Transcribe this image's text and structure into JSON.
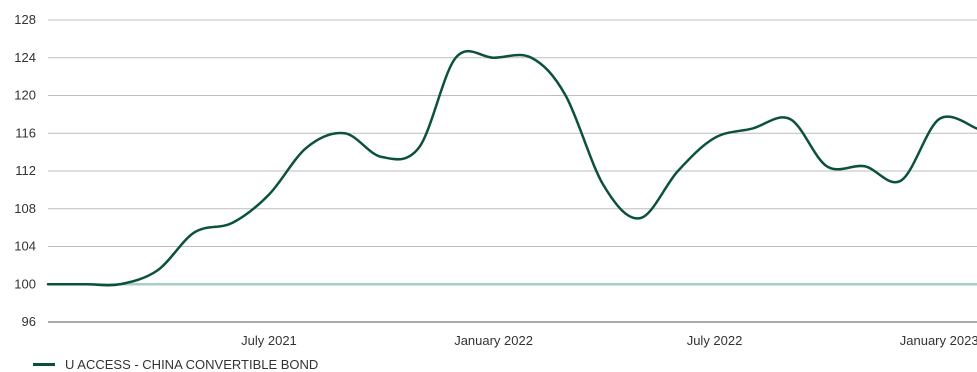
{
  "chart_data": {
    "type": "line",
    "title": "",
    "xlabel": "",
    "ylabel": "",
    "ylim": [
      96,
      128
    ],
    "yticks": [
      96,
      100,
      104,
      108,
      112,
      116,
      120,
      124,
      128
    ],
    "xlim": [
      "2021-01-01",
      "2023-02-01"
    ],
    "xticks": [
      {
        "x": "2021-07-01",
        "label": "July 2021"
      },
      {
        "x": "2022-01-01",
        "label": "January 2022"
      },
      {
        "x": "2022-07-01",
        "label": "July 2022"
      },
      {
        "x": "2023-01-01",
        "label": "January 2023"
      }
    ],
    "reference_line": {
      "y": 100
    },
    "grid": true,
    "legend_position": "bottom-left",
    "series": [
      {
        "name": "U ACCESS - CHINA CONVERTIBLE BOND",
        "color": "#0c5236",
        "points": [
          {
            "x": "2021-01-01",
            "y": 100
          },
          {
            "x": "2021-02-01",
            "y": 100
          },
          {
            "x": "2021-03-01",
            "y": 100
          },
          {
            "x": "2021-04-01",
            "y": 101.5
          },
          {
            "x": "2021-05-01",
            "y": 105.5
          },
          {
            "x": "2021-06-01",
            "y": 106.5
          },
          {
            "x": "2021-07-01",
            "y": 109.5
          },
          {
            "x": "2021-08-01",
            "y": 114.5
          },
          {
            "x": "2021-09-01",
            "y": 116
          },
          {
            "x": "2021-10-01",
            "y": 113.5
          },
          {
            "x": "2021-11-01",
            "y": 114.5
          },
          {
            "x": "2021-12-01",
            "y": 124
          },
          {
            "x": "2022-01-01",
            "y": 124
          },
          {
            "x": "2022-02-01",
            "y": 124
          },
          {
            "x": "2022-03-01",
            "y": 120
          },
          {
            "x": "2022-04-01",
            "y": 110.5
          },
          {
            "x": "2022-05-01",
            "y": 107
          },
          {
            "x": "2022-06-01",
            "y": 112
          },
          {
            "x": "2022-07-01",
            "y": 115.5
          },
          {
            "x": "2022-08-01",
            "y": 116.5
          },
          {
            "x": "2022-09-01",
            "y": 117.5
          },
          {
            "x": "2022-10-01",
            "y": 112.5
          },
          {
            "x": "2022-11-01",
            "y": 112.5
          },
          {
            "x": "2022-12-01",
            "y": 111
          },
          {
            "x": "2023-01-01",
            "y": 117.5
          },
          {
            "x": "2023-02-01",
            "y": 116.5
          }
        ]
      }
    ]
  },
  "colors": {
    "series": "#0c5236",
    "grid": "#bdbdbd",
    "reference": "#a7cfc2",
    "axis": "#555555",
    "text": "#333333"
  },
  "legend": {
    "label": "U ACCESS - CHINA CONVERTIBLE BOND"
  }
}
